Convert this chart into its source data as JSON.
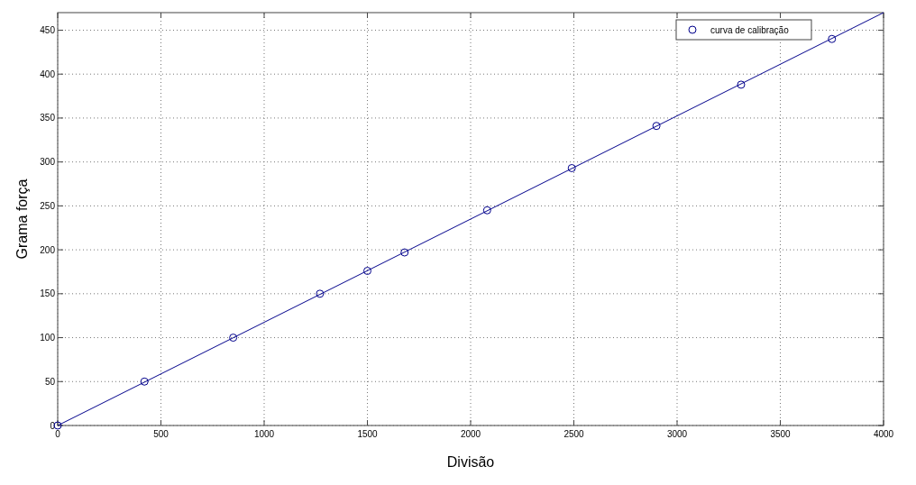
{
  "chart_data": {
    "type": "scatter",
    "xlabel": "Divisão",
    "ylabel": "Grama força",
    "xlim": [
      0,
      4000
    ],
    "ylim": [
      0,
      470
    ],
    "xticks": [
      0,
      500,
      1000,
      1500,
      2000,
      2500,
      3000,
      3500,
      4000
    ],
    "yticks": [
      0,
      50,
      100,
      150,
      200,
      250,
      300,
      350,
      400,
      450
    ],
    "grid": true,
    "legend": "top right",
    "series": [
      {
        "name": "curva de calibração",
        "marker": "circle",
        "color": "#00008b",
        "x": [
          0,
          420,
          850,
          1270,
          1500,
          1680,
          2080,
          2490,
          2900,
          3310,
          3750
        ],
        "values": [
          0,
          50,
          100,
          150,
          176,
          197,
          245,
          293,
          341,
          388,
          440
        ]
      },
      {
        "type": "line",
        "marker": "none",
        "color": "#00008b",
        "x": [
          0,
          4000
        ],
        "values": [
          0,
          470
        ]
      }
    ]
  }
}
